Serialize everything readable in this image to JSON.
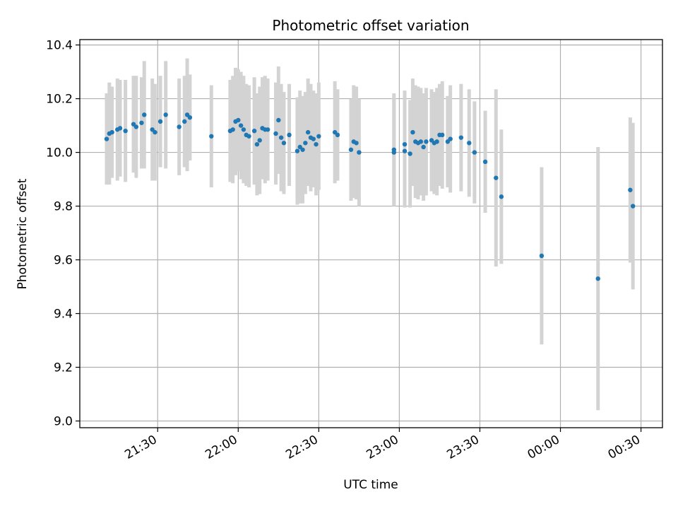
{
  "chart_data": {
    "type": "scatter",
    "title": "Photometric offset variation",
    "xlabel": "UTC time",
    "ylabel": "Photometric offset",
    "grid": true,
    "xlim": [
      "21:01",
      "00:38"
    ],
    "ylim": [
      8.975,
      10.42
    ],
    "xticks": [
      "21:30",
      "22:00",
      "22:30",
      "23:00",
      "23:30",
      "00:00",
      "00:30"
    ],
    "yticks": [
      9.0,
      9.2,
      9.4,
      9.6,
      9.8,
      10.0,
      10.2,
      10.4
    ],
    "ytick_labels": [
      "9.0",
      "9.2",
      "9.4",
      "9.6",
      "9.8",
      "10.0",
      "10.2",
      "10.4"
    ],
    "colors": {
      "points": "#1f77b4",
      "errorbars": "#d3d3d3",
      "grid": "#b0b0b0"
    },
    "series": [
      {
        "x": [
          "21:11",
          "21:12",
          "21:13",
          "21:15",
          "21:16",
          "21:18",
          "21:21",
          "21:22",
          "21:24",
          "21:25",
          "21:28",
          "21:29",
          "21:31",
          "21:33",
          "21:38",
          "21:40",
          "21:41",
          "21:42",
          "21:50",
          "21:57",
          "21:58",
          "21:59",
          "22:00",
          "22:01",
          "22:02",
          "22:03",
          "22:04",
          "22:06",
          "22:07",
          "22:08",
          "22:09",
          "22:10",
          "22:11",
          "22:14",
          "22:15",
          "22:16",
          "22:17",
          "22:19",
          "22:22",
          "22:23",
          "22:24",
          "22:25",
          "22:26",
          "22:27",
          "22:28",
          "22:29",
          "22:30",
          "22:36",
          "22:37",
          "22:42",
          "22:43",
          "22:44",
          "22:45",
          "22:58",
          "22:58",
          "23:02",
          "23:02",
          "23:04",
          "23:05",
          "23:06",
          "23:07",
          "23:08",
          "23:09",
          "23:10",
          "23:12",
          "23:13",
          "23:14",
          "23:15",
          "23:16",
          "23:18",
          "23:19",
          "23:23",
          "23:26",
          "23:28",
          "23:32",
          "23:36",
          "23:38",
          "23:53",
          "00:14",
          "00:26",
          "00:27"
        ],
        "y": [
          10.05,
          10.07,
          10.075,
          10.085,
          10.09,
          10.08,
          10.105,
          10.095,
          10.11,
          10.14,
          10.085,
          10.075,
          10.115,
          10.14,
          10.095,
          10.115,
          10.14,
          10.13,
          10.06,
          10.08,
          10.085,
          10.115,
          10.12,
          10.1,
          10.085,
          10.065,
          10.06,
          10.08,
          10.03,
          10.045,
          10.09,
          10.085,
          10.085,
          10.07,
          10.12,
          10.055,
          10.035,
          10.065,
          10.005,
          10.02,
          10.01,
          10.035,
          10.075,
          10.055,
          10.05,
          10.03,
          10.06,
          10.075,
          10.065,
          10.01,
          10.04,
          10.035,
          10.0,
          10.0,
          10.01,
          10.005,
          10.03,
          9.995,
          10.075,
          10.04,
          10.035,
          10.04,
          10.02,
          10.04,
          10.045,
          10.035,
          10.04,
          10.065,
          10.065,
          10.04,
          10.05,
          10.055,
          10.035,
          10.0,
          9.965,
          9.905,
          9.835,
          9.615,
          9.53,
          9.86,
          9.8
        ],
        "yerr": [
          0.17,
          0.19,
          0.17,
          0.19,
          0.18,
          0.19,
          0.18,
          0.19,
          0.17,
          0.2,
          0.19,
          0.18,
          0.17,
          0.2,
          0.18,
          0.17,
          0.21,
          0.16,
          0.19,
          0.19,
          0.2,
          0.2,
          0.19,
          0.2,
          0.2,
          0.19,
          0.19,
          0.2,
          0.19,
          0.2,
          0.19,
          0.2,
          0.19,
          0.19,
          0.2,
          0.2,
          0.19,
          0.19,
          0.2,
          0.21,
          0.2,
          0.19,
          0.2,
          0.2,
          0.18,
          0.19,
          0.2,
          0.19,
          0.17,
          0.19,
          0.21,
          0.21,
          0.2,
          0.2,
          0.21,
          0.21,
          0.2,
          0.2,
          0.2,
          0.21,
          0.21,
          0.2,
          0.2,
          0.2,
          0.19,
          0.19,
          0.2,
          0.19,
          0.2,
          0.17,
          0.2,
          0.2,
          0.2,
          0.19,
          0.19,
          0.33,
          0.25,
          0.33,
          0.49,
          0.27,
          0.31
        ]
      }
    ]
  }
}
